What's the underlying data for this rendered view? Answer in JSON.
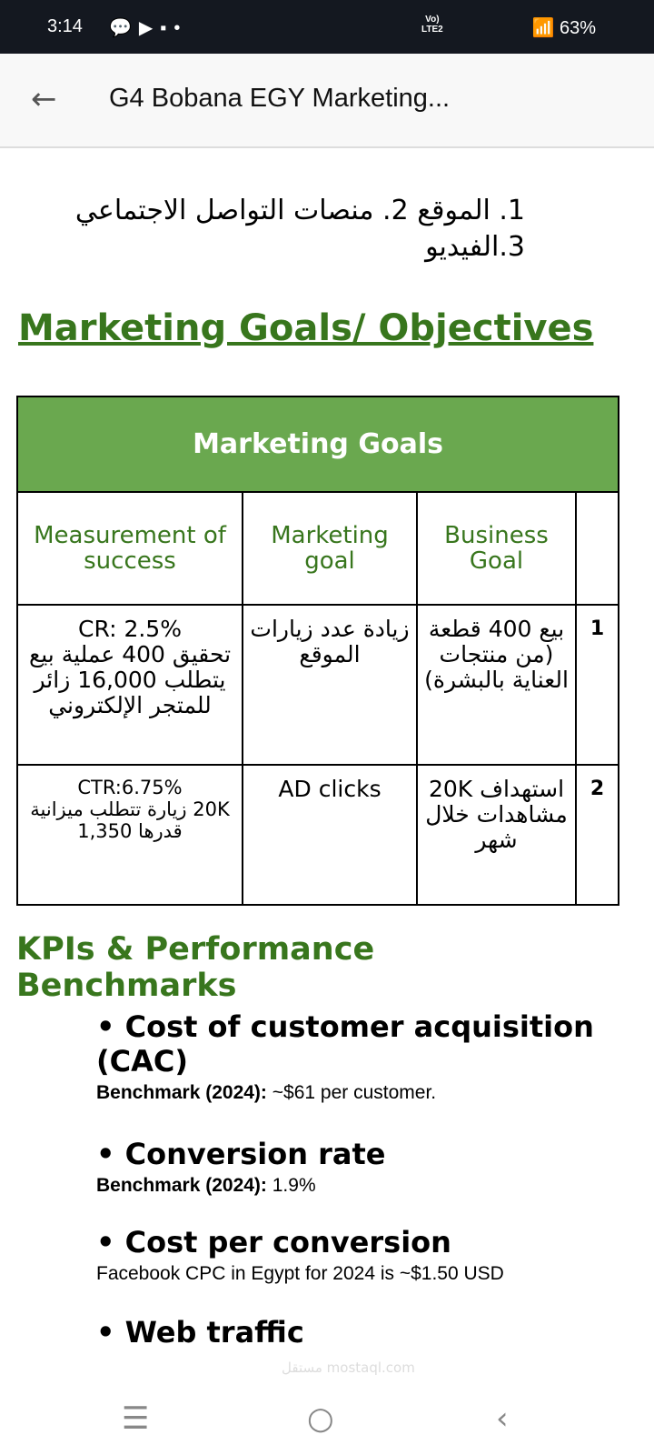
{
  "status_bar": {
    "time": "3:14",
    "battery": "63%",
    "network": "LTE2"
  },
  "app_bar": {
    "title": "G4 Bobana EGY Marketing..."
  },
  "arabic_list": "1. الموقع  2. منصات التواصل الاجتماعي 3.الفيديو",
  "section_title": "Marketing Goals/ Objectives",
  "table": {
    "title": "Marketing Goals",
    "headers": [
      "Measurement of success",
      "Marketing goal",
      "Business Goal",
      ""
    ],
    "rows": [
      {
        "num": "1",
        "business": "بيع 400 قطعة (من منتجات العناية بالبشرة)",
        "marketing": "زيادة عدد زيارات الموقع",
        "measurement_line1": "CR: 2.5%",
        "measurement_rest": "تحقيق 400 عملية بيع يتطلب 16,000 زائر للمتجر الإلكتروني"
      },
      {
        "num": "2",
        "business": "استهداف 20K مشاهدات خلال شهر",
        "marketing": "AD clicks",
        "measurement_line1": "CTR:6.75%",
        "measurement_rest": "20K زيارة تتطلب ميزانية قدرها 1,350"
      }
    ]
  },
  "kpi_title": "KPIs & Performance Benchmarks",
  "kpis": [
    {
      "title": "Cost of customer acquisition (CAC)",
      "label": "Benchmark (2024):",
      "value": " ~$61 per customer."
    },
    {
      "title": "Conversion rate",
      "label": "Benchmark (2024):",
      "value": " 1.9%"
    },
    {
      "title": "Cost per conversion",
      "label": "",
      "value": "Facebook CPC in Egypt for 2024 is ~$1.50 USD"
    },
    {
      "title": "Web traffic"
    }
  ],
  "watermark": "مستقل mostaql.com",
  "colors": {
    "accent": "#38761d",
    "header_fill": "#6aa84f"
  }
}
